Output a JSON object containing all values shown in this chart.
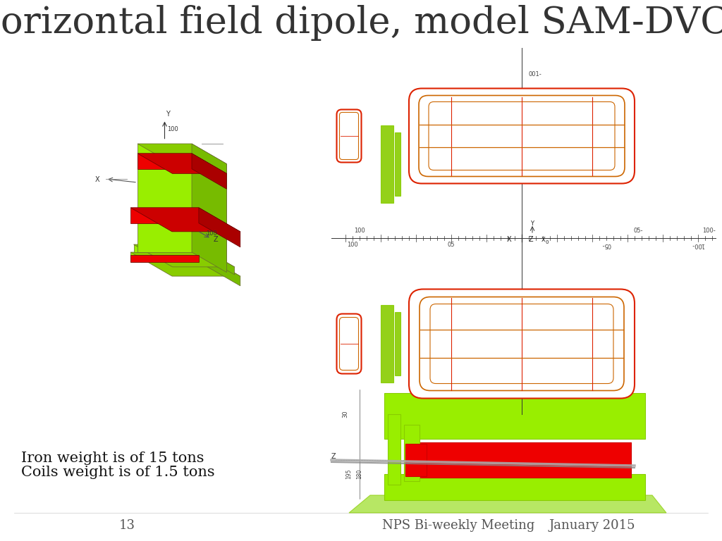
{
  "title": "Horizontal field dipole, model SAM-DVCS",
  "title_fontsize": 38,
  "title_font": "DejaVu Serif",
  "title_color": "#333333",
  "bg_color": "#ffffff",
  "iron_text": "Iron weight is of 15 tons",
  "coils_text": "Coils weight is of 1.5 tons",
  "page_num": "13",
  "footer_center": "NPS Bi-weekly Meeting",
  "footer_right": "January 2015",
  "text_fontsize": 15,
  "footer_fontsize": 13,
  "lime_color": "#99ee00",
  "lime_dark": "#88cc00",
  "lime_side": "#77bb00",
  "red_color": "#ee0000",
  "red_dark": "#cc0000",
  "red_side": "#aa0000",
  "diagram_red": "#dd2200",
  "diagram_orange": "#cc6600",
  "diagram_lime": "#88cc00",
  "axis_color": "#333333",
  "tick_color": "#555555"
}
